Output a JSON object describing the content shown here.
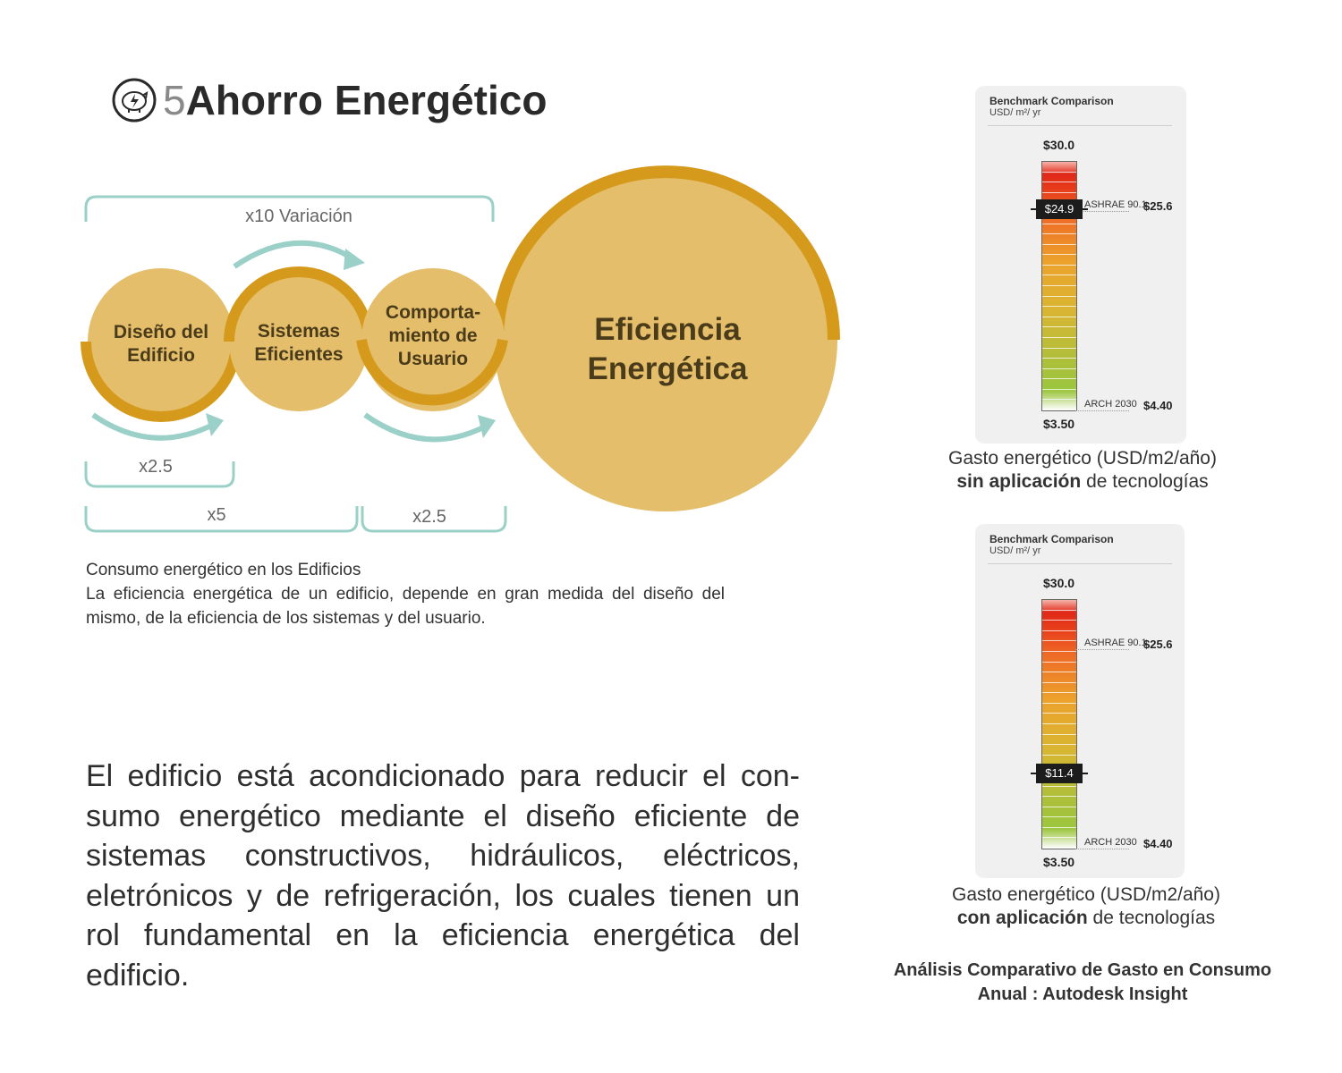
{
  "header": {
    "icon": "piggy-bank-bolt-icon",
    "number": "5",
    "title": "Ahorro Energético"
  },
  "diagram": {
    "circles": [
      {
        "line1": "Diseño del",
        "line2": "Edificio"
      },
      {
        "line1": "Sistemas",
        "line2": "Eficientes"
      },
      {
        "line1": "Comporta-",
        "line2": "miento de",
        "line3": "Usuario"
      },
      {
        "line1": "Eficiencia",
        "line2": "Energética"
      }
    ],
    "multipliers": {
      "top": "x10 Variación",
      "first": "x2.5",
      "middle": "x5",
      "last": "x2.5"
    },
    "colors": {
      "circle_fill": "#e4be6a",
      "ring": "#d59a1c",
      "bracket": "#9ad0c7",
      "arrow": "#9ad0c7"
    }
  },
  "caption": {
    "title": "Consumo energético en los Edificios",
    "body": "La eficiencia energética de un edificio, depende en gran medida del diseño del mismo, de la eficiencia de los sistemas y del usuario."
  },
  "body_text": "El edificio está acondicionado para reducir el con-sumo energético mediante el diseño eficiente de sistemas constructivos, hidráulicos, eléctricos, eletrónicos y de refrigeración, los cuales tienen un rol fundamental en la eficiencia energética del edificio.",
  "chart_data": [
    {
      "type": "gauge",
      "title": "Benchmark Comparison",
      "unit": "USD/ m²/ yr",
      "max_label": "$30.0",
      "min_label": "$3.50",
      "max": 30.0,
      "min": 3.5,
      "references": [
        {
          "name": "ASHRAE 90.1",
          "label": "$25.6",
          "value": 25.6
        },
        {
          "name": "ARCH 2030",
          "label": "$4.40",
          "value": 4.4
        }
      ],
      "current_label": "$24.9",
      "current": 24.9,
      "caption_line1": "Gasto energético (USD/m2/año)",
      "caption_bold": "sin aplicación",
      "caption_rest": "de tecnologías"
    },
    {
      "type": "gauge",
      "title": "Benchmark Comparison",
      "unit": "USD/ m²/ yr",
      "max_label": "$30.0",
      "min_label": "$3.50",
      "max": 30.0,
      "min": 3.5,
      "references": [
        {
          "name": "ASHRAE 90.1",
          "label": "$25.6",
          "value": 25.6
        },
        {
          "name": "ARCH 2030",
          "label": "$4.40",
          "value": 4.4
        }
      ],
      "current_label": "$11.4",
      "current": 11.4,
      "caption_line1": "Gasto energético (USD/m2/año)",
      "caption_bold": "con aplicación",
      "caption_rest": "de tecnologías"
    }
  ],
  "footer_caption": {
    "line1": "Análisis Comparativo de Gasto en Consumo",
    "line2": "Anual : Autodesk Insight"
  }
}
